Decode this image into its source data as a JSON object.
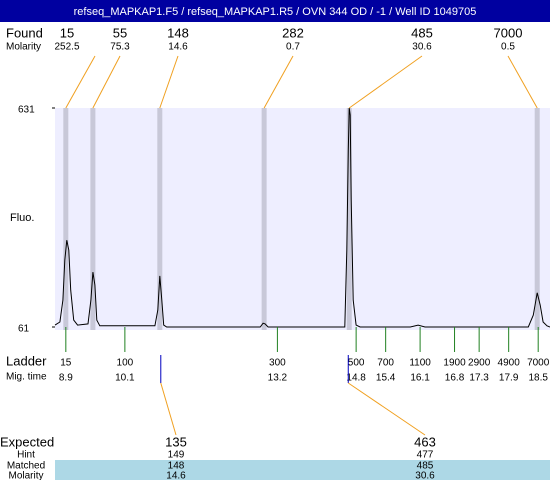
{
  "title": "refseq_MAPKAP1.F5 / refseq_MAPKAP1.R5 / OVN 344 OD / -1 / Well ID 1049705",
  "row_labels": {
    "found": "Found",
    "molarity": "Molarity",
    "fluo": "Fluo.",
    "ladder": "Ladder",
    "mig_time": "Mig. time",
    "expected": "Expected",
    "hint": "Hint",
    "matched": "Matched",
    "expected_molarity": "Molarity"
  },
  "chart_data": {
    "type": "line",
    "color": "#000000",
    "x": [
      8.68,
      8.78,
      8.84,
      8.88,
      8.92,
      8.96,
      9.0,
      9.06,
      9.14,
      9.35,
      9.41,
      9.45,
      9.49,
      9.53,
      9.59,
      10.71,
      10.77,
      10.81,
      10.85,
      10.89,
      10.95,
      12.85,
      12.91,
      12.95,
      13.01,
      14.57,
      14.61,
      14.64,
      14.66,
      14.68,
      14.7,
      14.74,
      14.8,
      14.88,
      15.9,
      16.06,
      16.2,
      18.3,
      18.4,
      18.48,
      18.54,
      18.6,
      18.68,
      18.74
    ],
    "values": [
      66,
      74,
      131,
      235,
      287,
      261,
      157,
      79,
      66,
      69,
      131,
      204,
      170,
      79,
      64,
      64,
      105,
      194,
      131,
      66,
      61,
      61,
      71,
      69,
      61,
      61,
      261,
      522,
      631,
      613,
      392,
      131,
      66,
      61,
      61,
      66,
      61,
      61,
      92,
      150,
      118,
      74,
      64,
      61
    ],
    "xlim": [
      8.68,
      18.74
    ],
    "ylim": [
      61,
      631
    ],
    "yticks": [
      61,
      631
    ],
    "found": {
      "sizes": [
        15,
        55,
        148,
        282,
        485,
        7000
      ],
      "molarity": [
        252.5,
        75.3,
        14.6,
        0.7,
        30.6,
        0.5
      ],
      "x": [
        8.9,
        9.45,
        10.81,
        12.93,
        14.66,
        18.48
      ]
    },
    "ladder": {
      "sizes": [
        15,
        100,
        300,
        500,
        700,
        1100,
        1900,
        2900,
        4900,
        7000
      ],
      "mig_time": [
        8.9,
        10.1,
        13.2,
        14.8,
        15.4,
        16.1,
        16.8,
        17.3,
        17.9,
        18.5
      ]
    },
    "expected": {
      "sizes": [
        135,
        463
      ],
      "hint": [
        149,
        477
      ],
      "matched": [
        148,
        485
      ],
      "molarity": [
        14.6,
        30.6
      ],
      "x": [
        10.83,
        14.64
      ]
    }
  }
}
